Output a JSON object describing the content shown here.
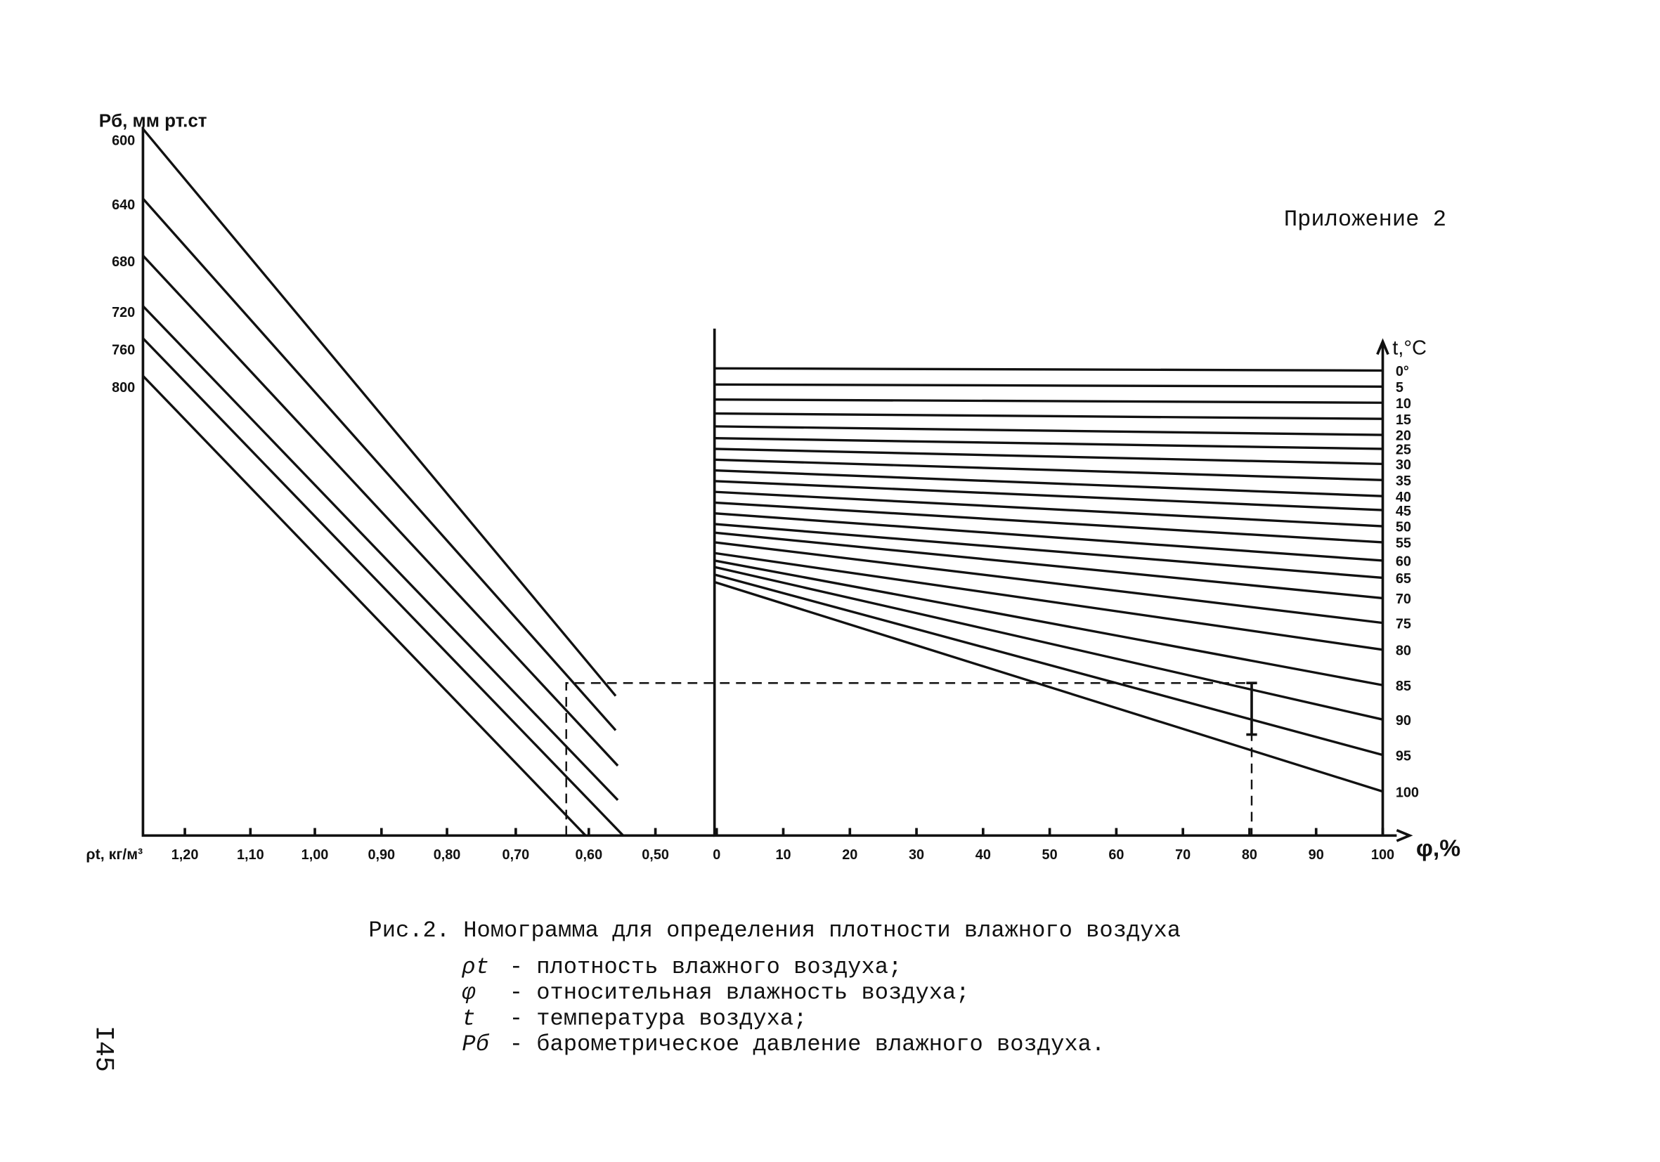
{
  "header": {
    "appendix": "Приложение 2"
  },
  "nomogram": {
    "left_axis_title": "Pб, мм рт.ст",
    "left_axis_labels": [
      "600",
      "640",
      "680",
      "720",
      "760",
      "800"
    ],
    "density_axis_title": "ρt, кг/м³",
    "density_labels": [
      "1,20",
      "1,10",
      "1,00",
      "0,90",
      "0,80",
      "0,70",
      "0,60",
      "0,50"
    ],
    "humidity_axis_title": "φ,%",
    "humidity_labels": [
      "0",
      "10",
      "20",
      "30",
      "40",
      "50",
      "60",
      "70",
      "80",
      "90",
      "100"
    ],
    "temperature_axis_title": "t,°C",
    "temperature_labels": [
      "0°",
      "5",
      "10",
      "15",
      "20",
      "25",
      "30",
      "35",
      "40",
      "45",
      "50",
      "55",
      "60",
      "65",
      "70",
      "75",
      "80",
      "85",
      "90",
      "95",
      "100"
    ]
  },
  "caption": {
    "title": "Рис.2. Номограмма для определения плотности влажного воздуха",
    "legend": [
      {
        "symbol": "ρt",
        "text": "- плотность влажного воздуха;"
      },
      {
        "symbol": "φ",
        "text": "- относительная влажность воздуха;"
      },
      {
        "symbol": "t",
        "text": "- температура воздуха;"
      },
      {
        "symbol": "Pб",
        "text": "- барометрическое давление влажного воздуха."
      }
    ]
  },
  "page_number": "I45"
}
